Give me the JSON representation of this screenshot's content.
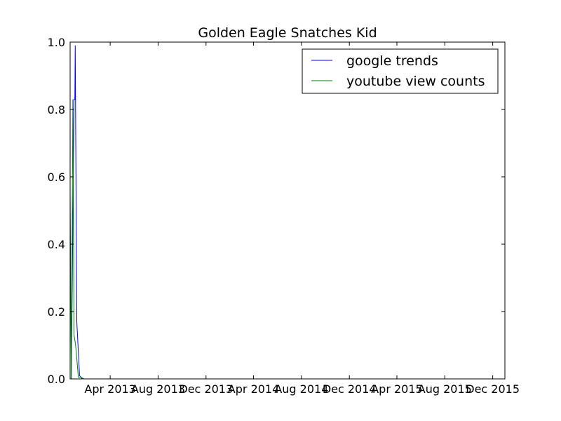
{
  "chart_data": {
    "type": "line",
    "title": "Golden Eagle Snatches Kid",
    "xlabel": "",
    "ylabel": "",
    "xlim": [
      "2012-12-20",
      "2016-01-01"
    ],
    "ylim": [
      0,
      1
    ],
    "x_ticks": [
      {
        "date": "2013-04-01",
        "label": "Apr 2013"
      },
      {
        "date": "2013-08-01",
        "label": "Aug 2013"
      },
      {
        "date": "2013-12-01",
        "label": "Dec 2013"
      },
      {
        "date": "2014-04-01",
        "label": "Apr 2014"
      },
      {
        "date": "2014-08-01",
        "label": "Aug 2014"
      },
      {
        "date": "2014-12-01",
        "label": "Dec 2014"
      },
      {
        "date": "2015-04-01",
        "label": "Apr 2015"
      },
      {
        "date": "2015-08-01",
        "label": "Aug 2015"
      },
      {
        "date": "2015-12-01",
        "label": "Dec 2015"
      }
    ],
    "y_ticks": [
      {
        "value": 0.0,
        "label": "0.0"
      },
      {
        "value": 0.2,
        "label": "0.2"
      },
      {
        "value": 0.4,
        "label": "0.4"
      },
      {
        "value": 0.6,
        "label": "0.6"
      },
      {
        "value": 0.8,
        "label": "0.8"
      },
      {
        "value": 1.0,
        "label": "1.0"
      }
    ],
    "legend_position": "top-right",
    "grid": false,
    "series": [
      {
        "name": "google trends",
        "color": "#0000ff",
        "points": [
          {
            "x": "2012-12-23",
            "y": 0.0
          },
          {
            "x": "2012-12-30",
            "y": 0.83
          },
          {
            "x": "2013-01-01",
            "y": 0.83
          },
          {
            "x": "2013-01-02",
            "y": 0.99
          },
          {
            "x": "2013-01-06",
            "y": 0.17
          },
          {
            "x": "2013-01-13",
            "y": 0.01
          },
          {
            "x": "2013-01-20",
            "y": 0.0
          },
          {
            "x": "2013-01-27",
            "y": 0.0
          },
          {
            "x": "2013-02-03",
            "y": 0.0
          },
          {
            "x": "2015-12-31",
            "y": 0.0
          }
        ]
      },
      {
        "name": "youtube view counts",
        "color": "#008000",
        "points": [
          {
            "x": "2012-12-20",
            "y": 0.55
          },
          {
            "x": "2012-12-23",
            "y": 0.0
          },
          {
            "x": "2012-12-27",
            "y": 0.83
          },
          {
            "x": "2012-12-30",
            "y": 0.13
          },
          {
            "x": "2013-01-03",
            "y": 0.1
          },
          {
            "x": "2013-01-10",
            "y": 0.005
          },
          {
            "x": "2013-01-17",
            "y": 0.005
          },
          {
            "x": "2013-01-24",
            "y": 0.0
          },
          {
            "x": "2015-12-31",
            "y": 0.0
          }
        ]
      }
    ]
  }
}
